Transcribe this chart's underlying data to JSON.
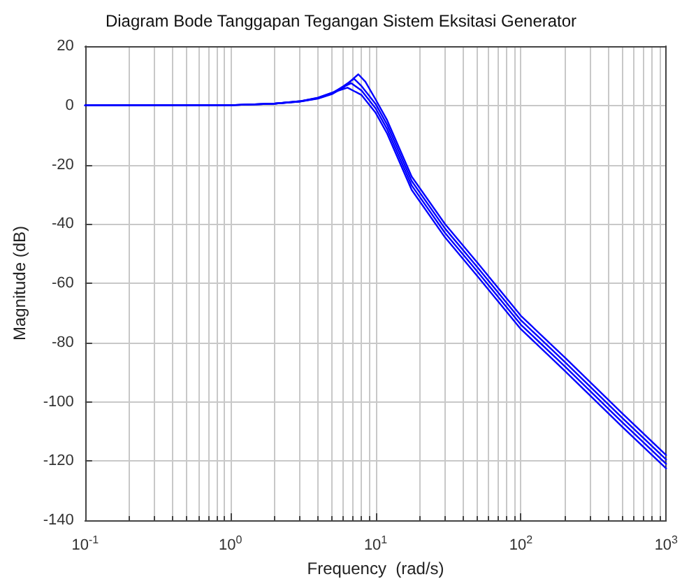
{
  "chart_data": {
    "type": "line",
    "title": "Diagram Bode Tanggapan Tegangan Sistem Eksitasi Generator",
    "xlabel": "Frequency  (rad/s)",
    "ylabel": "Magnitude (dB)",
    "log": "x",
    "grid": true,
    "marker": "none",
    "line_style": "solid",
    "xlim": [
      0.1,
      1000
    ],
    "xticks": [
      {
        "value": 0.1,
        "label": "10$^{-1}$"
      },
      {
        "value": 1,
        "label": "10$^{0}$"
      },
      {
        "value": 10,
        "label": "10$^{1}$"
      },
      {
        "value": 100,
        "label": "10$^{2}$"
      },
      {
        "value": 1000,
        "label": "10$^{3}$"
      }
    ],
    "ylim": [
      -140,
      20
    ],
    "yticks": [
      -140,
      -120,
      -100,
      -80,
      -60,
      -40,
      -20,
      0,
      20
    ],
    "series": [
      {
        "color": "#0000ff",
        "x": [
          0.1,
          1,
          2,
          3,
          4,
          5,
          6,
          7,
          7.6,
          8.5,
          10,
          12,
          17.7,
          30,
          50,
          100,
          200,
          500,
          1000
        ],
        "values": [
          0,
          0.1,
          0.6,
          1.3,
          2.3,
          3.8,
          6,
          9,
          10.5,
          8,
          2,
          -5,
          -24,
          -40,
          -53,
          -71,
          -85,
          -104,
          -118
        ]
      },
      {
        "color": "#0000ff",
        "x": [
          0.1,
          1,
          2,
          3,
          4,
          5,
          6,
          7.1,
          8,
          10,
          12,
          17.7,
          30,
          50,
          100,
          200,
          500,
          1000
        ],
        "values": [
          0,
          0.1,
          0.6,
          1.3,
          2.4,
          4,
          6.5,
          9,
          6.5,
          0.5,
          -6.5,
          -25.5,
          -41.5,
          -54.5,
          -72.5,
          -86.5,
          -105.5,
          -119.5
        ]
      },
      {
        "color": "#0000ff",
        "x": [
          0.1,
          1,
          2,
          3,
          4,
          5,
          6,
          6.8,
          8,
          10,
          12,
          17.7,
          30,
          50,
          100,
          200,
          500,
          1000
        ],
        "values": [
          0,
          0.1,
          0.6,
          1.4,
          2.5,
          4.2,
          6.3,
          7.5,
          5,
          -1,
          -8,
          -27,
          -43,
          -56,
          -74,
          -88,
          -107,
          -121
        ]
      },
      {
        "color": "#0000ff",
        "x": [
          0.1,
          1,
          2,
          3,
          4,
          5,
          6.4,
          8,
          10,
          12,
          17.7,
          30,
          50,
          100,
          200,
          500,
          1000
        ],
        "values": [
          0,
          0.1,
          0.6,
          1.4,
          2.6,
          4.3,
          6,
          3.5,
          -2.5,
          -9.5,
          -28.5,
          -44.5,
          -57.5,
          -75.5,
          -89.5,
          -108.5,
          -122.5
        ]
      }
    ]
  }
}
